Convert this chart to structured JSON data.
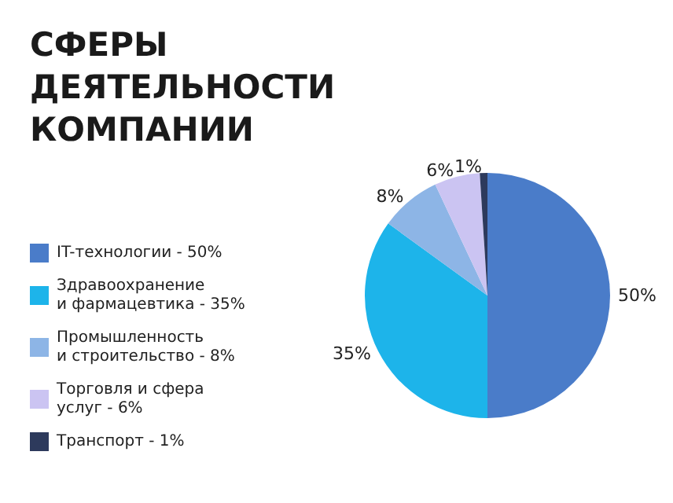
{
  "chart_data": {
    "type": "pie",
    "title": "СФЕРЫ\nДЕЯТЕЛЬНОСТИ\nКОМПАНИИ",
    "categories": [
      "IT-технологии - 50%",
      "Здравоохранение\nи фармацевтика - 35%",
      "Промышленность\nи строительство - 8%",
      "Торговля и сфера\nуслуг - 6%",
      "Транспорт - 1%"
    ],
    "values": [
      50,
      35,
      8,
      6,
      1
    ],
    "colors": [
      "#4a7cc9",
      "#1db4ea",
      "#8db5e6",
      "#cbc4f2",
      "#2d3a5c"
    ],
    "value_labels": [
      "50%",
      "35%",
      "8%",
      "6%",
      "1%"
    ],
    "legend": "left"
  }
}
